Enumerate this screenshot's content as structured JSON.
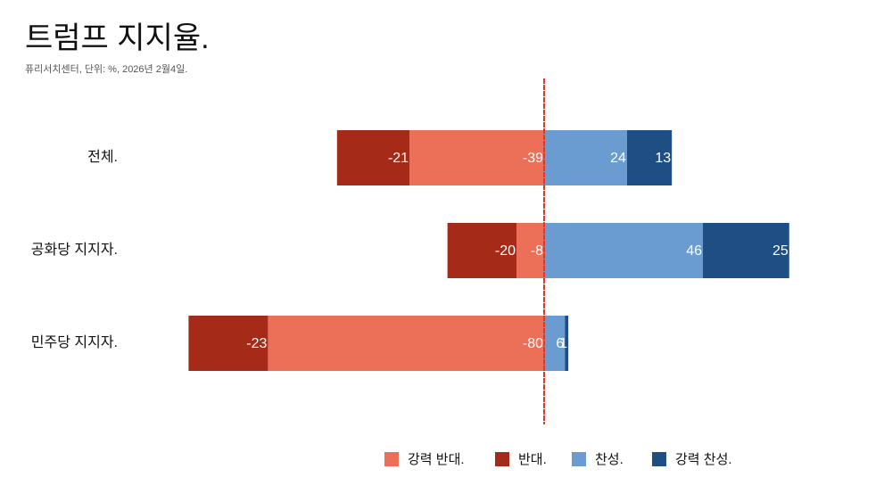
{
  "chart_data": {
    "type": "diverging_bar",
    "title": "트럼프 지지율.",
    "subtitle": "퓨리서치센터, 단위: %, 2026년 2월4일.",
    "categories": [
      "전체.",
      "공화당 지지자.",
      "민주당 지지자."
    ],
    "series": [
      {
        "name": "강력 반대.",
        "color": "#ec6f58",
        "values": [
          -39,
          -8,
          -80
        ]
      },
      {
        "name": "반대.",
        "color": "#a52a18",
        "values": [
          -21,
          -20,
          -23
        ]
      },
      {
        "name": "찬성.",
        "color": "#6a9bd1",
        "values": [
          24,
          46,
          6
        ]
      },
      {
        "name": "강력 찬성.",
        "color": "#1f4e84",
        "values": [
          13,
          25,
          1
        ]
      }
    ]
  }
}
